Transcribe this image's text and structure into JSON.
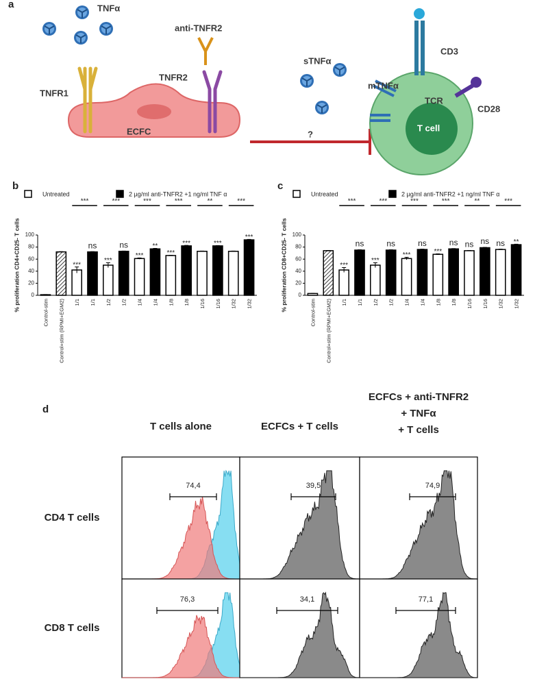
{
  "panel_a": {
    "label": "a",
    "tnfa": "TNFα",
    "anti_tnfr2": "anti-TNFR2",
    "tnfr1": "TNFR1",
    "tnfr2": "TNFR2",
    "ecfc": "ECFC",
    "stnfa": "sTNFα",
    "mtnfa": "mTNFα",
    "cd3": "CD3",
    "tcr": "TCR",
    "cd28": "CD28",
    "tcell": "T cell",
    "question": "?"
  },
  "chart_data": [
    {
      "type": "bar",
      "label": "b",
      "ylabel": "% proliferation CD4+CD25- T cells",
      "categories": [
        "Control-stim",
        "Control+stim (RPMI+EGM2)",
        "1/1",
        "1/1",
        "1/2",
        "1/2",
        "1/4",
        "1/4",
        "1/8",
        "1/8",
        "1/16",
        "1/16",
        "1/32",
        "1/32"
      ],
      "values": [
        1,
        72,
        42,
        72,
        50,
        73,
        61,
        77,
        66,
        82,
        73,
        82,
        73,
        92
      ],
      "errors": [
        0.3,
        0.5,
        5,
        0.5,
        4,
        0.5,
        1,
        0.8,
        0.5,
        0.8,
        0.5,
        0.5,
        0.5,
        0.8
      ],
      "fills": [
        "white",
        "hatch",
        "white",
        "black",
        "white",
        "black",
        "white",
        "black",
        "white",
        "black",
        "white",
        "black",
        "white",
        "black"
      ],
      "annotations": [
        null,
        null,
        "***",
        "ns",
        "***",
        "ns",
        "***",
        "**",
        "***",
        "***",
        null,
        "***",
        null,
        "***"
      ],
      "comparisons": [
        "***",
        "***",
        "***",
        "***",
        "**",
        "***"
      ],
      "legend": [
        {
          "name": "Untreated",
          "color": "white"
        },
        {
          "name": "2 µg/ml anti-TNFR2 +1 ng/ml TNF α",
          "color": "black"
        }
      ],
      "ylim": [
        0,
        100
      ],
      "yticks": [
        0,
        20,
        40,
        60,
        80,
        100
      ]
    },
    {
      "type": "bar",
      "label": "c",
      "ylabel": "% proliferation CD8+CD25- T cells",
      "categories": [
        "Control-stim",
        "Control+stim (RPMI+EGM2)",
        "1/1",
        "1/1",
        "1/2",
        "1/2",
        "1/4",
        "1/4",
        "1/8",
        "1/8",
        "1/16",
        "1/16",
        "1/32",
        "1/32"
      ],
      "values": [
        3,
        74,
        42,
        75,
        50,
        75,
        61,
        76,
        68,
        77,
        74,
        79,
        76,
        84
      ],
      "errors": [
        0.3,
        0.5,
        4,
        0.5,
        4,
        0.5,
        2,
        0.5,
        0.8,
        0.5,
        0.5,
        0.5,
        0.5,
        0.8
      ],
      "fills": [
        "white",
        "hatch",
        "white",
        "black",
        "white",
        "black",
        "white",
        "black",
        "white",
        "black",
        "white",
        "black",
        "white",
        "black"
      ],
      "annotations": [
        null,
        null,
        "***",
        "ns",
        "***",
        "ns",
        "***",
        "ns",
        "***",
        "ns",
        "ns",
        "ns",
        "ns",
        "**"
      ],
      "comparisons": [
        "***",
        "***",
        "***",
        "***",
        "**",
        "***"
      ],
      "legend": [
        {
          "name": "Untreated",
          "color": "white"
        },
        {
          "name": "2 µg/ml anti-TNFR2 +1 ng/ml TNF α",
          "color": "black"
        }
      ],
      "ylim": [
        0,
        100
      ],
      "yticks": [
        0,
        20,
        40,
        60,
        80,
        100
      ]
    }
  ],
  "panel_d": {
    "label": "d",
    "columns": [
      [
        "T cells alone"
      ],
      [
        "ECFCs + T cells"
      ],
      [
        "ECFCs + anti-TNFR2",
        "+ TNFα",
        "+ T cells"
      ]
    ],
    "rows": [
      "CD4 T cells",
      "CD8 T cells"
    ],
    "gates": [
      [
        "74,4",
        "39,5",
        "74,9"
      ],
      [
        "76,3",
        "34,1",
        "77,1"
      ]
    ]
  }
}
